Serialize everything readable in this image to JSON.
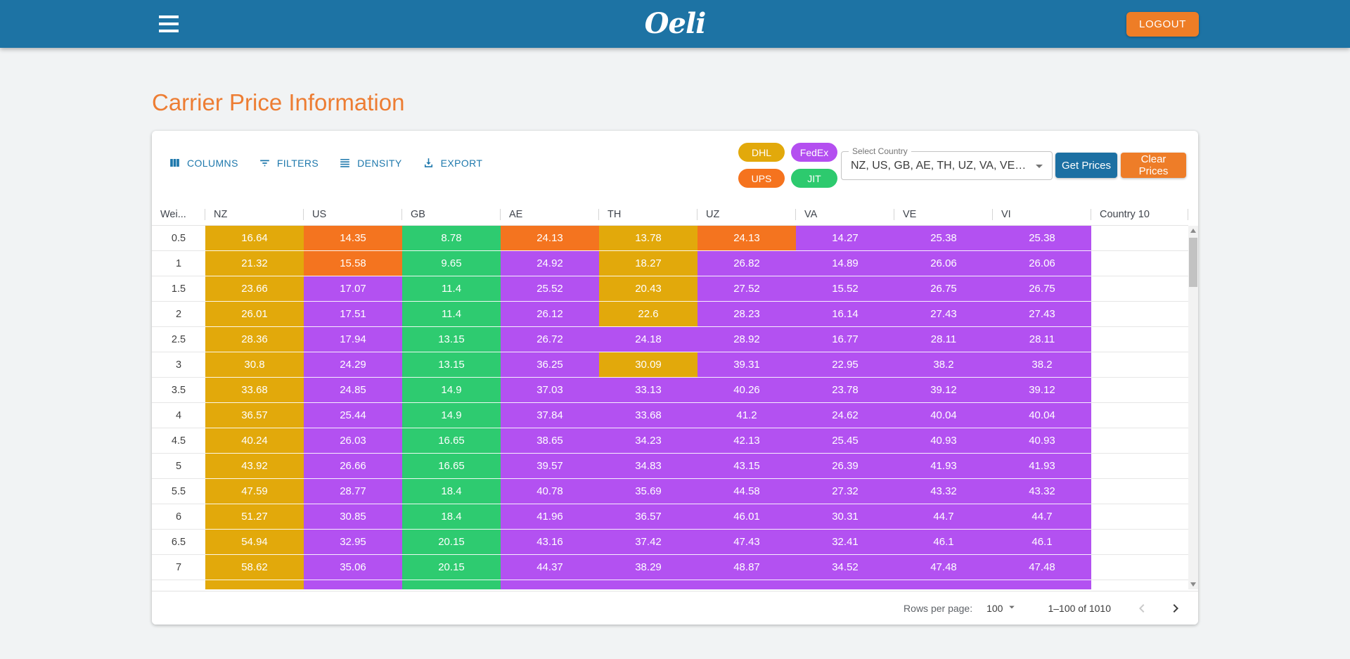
{
  "app_bar": {
    "logo": "Oeli",
    "logout_label": "LOGOUT"
  },
  "page": {
    "title": "Carrier Price Information"
  },
  "toolbar": {
    "buttons": [
      {
        "label": "COLUMNS",
        "icon": "columns-icon"
      },
      {
        "label": "FILTERS",
        "icon": "filter-icon"
      },
      {
        "label": "DENSITY",
        "icon": "density-icon"
      },
      {
        "label": "EXPORT",
        "icon": "export-icon"
      }
    ],
    "legend": [
      {
        "label": "DHL",
        "color": "#e2a90b"
      },
      {
        "label": "FedEx",
        "color": "#b44ff0"
      },
      {
        "label": "UPS",
        "color": "#f5731e"
      },
      {
        "label": "JIT",
        "color": "#2dca6e"
      }
    ],
    "select_country": {
      "label": "Select Country",
      "value": "NZ, US, GB, AE, TH, UZ, VA, VE…"
    },
    "get_prices_label": "Get Prices",
    "clear_prices_label": "Clear Prices"
  },
  "table": {
    "columns": [
      "Wei...",
      "NZ",
      "US",
      "GB",
      "AE",
      "TH",
      "UZ",
      "VA",
      "VE",
      "VI",
      "Country 10"
    ],
    "carrier_colors": {
      "DHL": "#e2a90b",
      "FedEx": "#b351f1",
      "UPS": "#f4741f",
      "JIT": "#2ecb70"
    },
    "rows": [
      {
        "weight": "0.5",
        "cells": [
          {
            "v": "16.64",
            "c": "DHL"
          },
          {
            "v": "14.35",
            "c": "UPS"
          },
          {
            "v": "8.78",
            "c": "JIT"
          },
          {
            "v": "24.13",
            "c": "UPS"
          },
          {
            "v": "13.78",
            "c": "DHL"
          },
          {
            "v": "24.13",
            "c": "UPS"
          },
          {
            "v": "14.27",
            "c": "FedEx"
          },
          {
            "v": "25.38",
            "c": "FedEx"
          },
          {
            "v": "25.38",
            "c": "FedEx"
          }
        ]
      },
      {
        "weight": "1",
        "cells": [
          {
            "v": "21.32",
            "c": "DHL"
          },
          {
            "v": "15.58",
            "c": "UPS"
          },
          {
            "v": "9.65",
            "c": "JIT"
          },
          {
            "v": "24.92",
            "c": "FedEx"
          },
          {
            "v": "18.27",
            "c": "DHL"
          },
          {
            "v": "26.82",
            "c": "FedEx"
          },
          {
            "v": "14.89",
            "c": "FedEx"
          },
          {
            "v": "26.06",
            "c": "FedEx"
          },
          {
            "v": "26.06",
            "c": "FedEx"
          }
        ]
      },
      {
        "weight": "1.5",
        "cells": [
          {
            "v": "23.66",
            "c": "DHL"
          },
          {
            "v": "17.07",
            "c": "FedEx"
          },
          {
            "v": "11.4",
            "c": "JIT"
          },
          {
            "v": "25.52",
            "c": "FedEx"
          },
          {
            "v": "20.43",
            "c": "DHL"
          },
          {
            "v": "27.52",
            "c": "FedEx"
          },
          {
            "v": "15.52",
            "c": "FedEx"
          },
          {
            "v": "26.75",
            "c": "FedEx"
          },
          {
            "v": "26.75",
            "c": "FedEx"
          }
        ]
      },
      {
        "weight": "2",
        "cells": [
          {
            "v": "26.01",
            "c": "DHL"
          },
          {
            "v": "17.51",
            "c": "FedEx"
          },
          {
            "v": "11.4",
            "c": "JIT"
          },
          {
            "v": "26.12",
            "c": "FedEx"
          },
          {
            "v": "22.6",
            "c": "DHL"
          },
          {
            "v": "28.23",
            "c": "FedEx"
          },
          {
            "v": "16.14",
            "c": "FedEx"
          },
          {
            "v": "27.43",
            "c": "FedEx"
          },
          {
            "v": "27.43",
            "c": "FedEx"
          }
        ]
      },
      {
        "weight": "2.5",
        "cells": [
          {
            "v": "28.36",
            "c": "DHL"
          },
          {
            "v": "17.94",
            "c": "FedEx"
          },
          {
            "v": "13.15",
            "c": "JIT"
          },
          {
            "v": "26.72",
            "c": "FedEx"
          },
          {
            "v": "24.18",
            "c": "FedEx"
          },
          {
            "v": "28.92",
            "c": "FedEx"
          },
          {
            "v": "16.77",
            "c": "FedEx"
          },
          {
            "v": "28.11",
            "c": "FedEx"
          },
          {
            "v": "28.11",
            "c": "FedEx"
          }
        ]
      },
      {
        "weight": "3",
        "cells": [
          {
            "v": "30.8",
            "c": "DHL"
          },
          {
            "v": "24.29",
            "c": "FedEx"
          },
          {
            "v": "13.15",
            "c": "JIT"
          },
          {
            "v": "36.25",
            "c": "FedEx"
          },
          {
            "v": "30.09",
            "c": "DHL"
          },
          {
            "v": "39.31",
            "c": "FedEx"
          },
          {
            "v": "22.95",
            "c": "FedEx"
          },
          {
            "v": "38.2",
            "c": "FedEx"
          },
          {
            "v": "38.2",
            "c": "FedEx"
          }
        ]
      },
      {
        "weight": "3.5",
        "cells": [
          {
            "v": "33.68",
            "c": "DHL"
          },
          {
            "v": "24.85",
            "c": "FedEx"
          },
          {
            "v": "14.9",
            "c": "JIT"
          },
          {
            "v": "37.03",
            "c": "FedEx"
          },
          {
            "v": "33.13",
            "c": "FedEx"
          },
          {
            "v": "40.26",
            "c": "FedEx"
          },
          {
            "v": "23.78",
            "c": "FedEx"
          },
          {
            "v": "39.12",
            "c": "FedEx"
          },
          {
            "v": "39.12",
            "c": "FedEx"
          }
        ]
      },
      {
        "weight": "4",
        "cells": [
          {
            "v": "36.57",
            "c": "DHL"
          },
          {
            "v": "25.44",
            "c": "FedEx"
          },
          {
            "v": "14.9",
            "c": "JIT"
          },
          {
            "v": "37.84",
            "c": "FedEx"
          },
          {
            "v": "33.68",
            "c": "FedEx"
          },
          {
            "v": "41.2",
            "c": "FedEx"
          },
          {
            "v": "24.62",
            "c": "FedEx"
          },
          {
            "v": "40.04",
            "c": "FedEx"
          },
          {
            "v": "40.04",
            "c": "FedEx"
          }
        ]
      },
      {
        "weight": "4.5",
        "cells": [
          {
            "v": "40.24",
            "c": "DHL"
          },
          {
            "v": "26.03",
            "c": "FedEx"
          },
          {
            "v": "16.65",
            "c": "JIT"
          },
          {
            "v": "38.65",
            "c": "FedEx"
          },
          {
            "v": "34.23",
            "c": "FedEx"
          },
          {
            "v": "42.13",
            "c": "FedEx"
          },
          {
            "v": "25.45",
            "c": "FedEx"
          },
          {
            "v": "40.93",
            "c": "FedEx"
          },
          {
            "v": "40.93",
            "c": "FedEx"
          }
        ]
      },
      {
        "weight": "5",
        "cells": [
          {
            "v": "43.92",
            "c": "DHL"
          },
          {
            "v": "26.66",
            "c": "FedEx"
          },
          {
            "v": "16.65",
            "c": "JIT"
          },
          {
            "v": "39.57",
            "c": "FedEx"
          },
          {
            "v": "34.83",
            "c": "FedEx"
          },
          {
            "v": "43.15",
            "c": "FedEx"
          },
          {
            "v": "26.39",
            "c": "FedEx"
          },
          {
            "v": "41.93",
            "c": "FedEx"
          },
          {
            "v": "41.93",
            "c": "FedEx"
          }
        ]
      },
      {
        "weight": "5.5",
        "cells": [
          {
            "v": "47.59",
            "c": "DHL"
          },
          {
            "v": "28.77",
            "c": "FedEx"
          },
          {
            "v": "18.4",
            "c": "JIT"
          },
          {
            "v": "40.78",
            "c": "FedEx"
          },
          {
            "v": "35.69",
            "c": "FedEx"
          },
          {
            "v": "44.58",
            "c": "FedEx"
          },
          {
            "v": "27.32",
            "c": "FedEx"
          },
          {
            "v": "43.32",
            "c": "FedEx"
          },
          {
            "v": "43.32",
            "c": "FedEx"
          }
        ]
      },
      {
        "weight": "6",
        "cells": [
          {
            "v": "51.27",
            "c": "DHL"
          },
          {
            "v": "30.85",
            "c": "FedEx"
          },
          {
            "v": "18.4",
            "c": "JIT"
          },
          {
            "v": "41.96",
            "c": "FedEx"
          },
          {
            "v": "36.57",
            "c": "FedEx"
          },
          {
            "v": "46.01",
            "c": "FedEx"
          },
          {
            "v": "30.31",
            "c": "FedEx"
          },
          {
            "v": "44.7",
            "c": "FedEx"
          },
          {
            "v": "44.7",
            "c": "FedEx"
          }
        ]
      },
      {
        "weight": "6.5",
        "cells": [
          {
            "v": "54.94",
            "c": "DHL"
          },
          {
            "v": "32.95",
            "c": "FedEx"
          },
          {
            "v": "20.15",
            "c": "JIT"
          },
          {
            "v": "43.16",
            "c": "FedEx"
          },
          {
            "v": "37.42",
            "c": "FedEx"
          },
          {
            "v": "47.43",
            "c": "FedEx"
          },
          {
            "v": "32.41",
            "c": "FedEx"
          },
          {
            "v": "46.1",
            "c": "FedEx"
          },
          {
            "v": "46.1",
            "c": "FedEx"
          }
        ]
      },
      {
        "weight": "7",
        "cells": [
          {
            "v": "58.62",
            "c": "DHL"
          },
          {
            "v": "35.06",
            "c": "FedEx"
          },
          {
            "v": "20.15",
            "c": "JIT"
          },
          {
            "v": "44.37",
            "c": "FedEx"
          },
          {
            "v": "38.29",
            "c": "FedEx"
          },
          {
            "v": "48.87",
            "c": "FedEx"
          },
          {
            "v": "34.52",
            "c": "FedEx"
          },
          {
            "v": "47.48",
            "c": "FedEx"
          },
          {
            "v": "47.48",
            "c": "FedEx"
          }
        ]
      }
    ],
    "partial_row_carriers": [
      "DHL",
      "FedEx",
      "JIT",
      "FedEx",
      "FedEx",
      "FedEx",
      "FedEx",
      "FedEx",
      "FedEx"
    ]
  },
  "footer": {
    "rows_per_page_label": "Rows per page:",
    "rows_per_page_value": "100",
    "range": "1–100 of 1010"
  }
}
